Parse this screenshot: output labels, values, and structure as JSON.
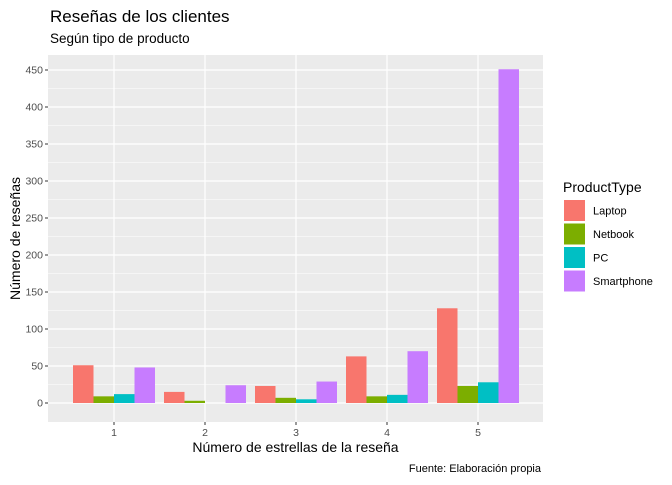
{
  "chart_data": {
    "type": "bar",
    "title": "Reseñas de los clientes",
    "subtitle": "Según tipo de producto",
    "xlabel": "Número de estrellas de la reseña",
    "ylabel": "Número de reseñas",
    "caption": "Fuente: Elaboración propia",
    "categories": [
      "1",
      "2",
      "3",
      "4",
      "5"
    ],
    "ylim": [
      0,
      470
    ],
    "yticks": [
      0,
      50,
      100,
      150,
      200,
      250,
      300,
      350,
      400,
      450
    ],
    "grid": true,
    "legend_position": "right",
    "legend_title": "ProductType",
    "series": [
      {
        "name": "Laptop",
        "color": "#F8766D",
        "values": [
          51,
          15,
          23,
          63,
          128
        ]
      },
      {
        "name": "Netbook",
        "color": "#7CAE00",
        "values": [
          9,
          3,
          7,
          9,
          23
        ]
      },
      {
        "name": "PC",
        "color": "#00BFC4",
        "values": [
          12,
          0,
          5,
          11,
          28
        ]
      },
      {
        "name": "Smartphone",
        "color": "#C77CFF",
        "values": [
          48,
          24,
          29,
          70,
          451
        ]
      }
    ]
  }
}
